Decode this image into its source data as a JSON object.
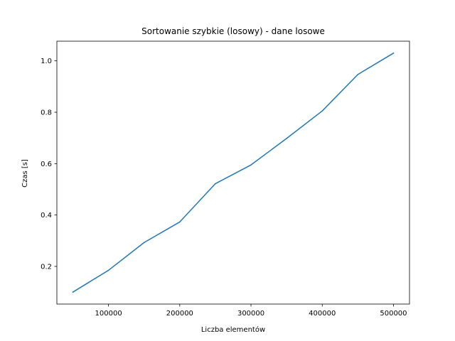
{
  "chart_data": {
    "type": "line",
    "title": "Sortowanie szybkie (losowy) - dane losowe",
    "xlabel": "Liczba elementów",
    "ylabel": "Czas [s]",
    "x": [
      50000,
      100000,
      150000,
      200000,
      250000,
      300000,
      350000,
      400000,
      450000,
      500000
    ],
    "series": [
      {
        "name": "Czas",
        "color": "#1f77b4",
        "values": [
          0.1,
          0.185,
          0.293,
          0.373,
          0.522,
          0.595,
          0.698,
          0.805,
          0.947,
          1.03
        ]
      }
    ],
    "xlim": [
      27500,
      522500
    ],
    "ylim": [
      0.0535,
      1.0765
    ],
    "xticks": [
      100000,
      200000,
      300000,
      400000,
      500000
    ],
    "xtick_labels": [
      "100000",
      "200000",
      "300000",
      "400000",
      "500000"
    ],
    "yticks": [
      0.2,
      0.4,
      0.6,
      0.8,
      1.0
    ],
    "ytick_labels": [
      "0.2",
      "0.4",
      "0.6",
      "0.8",
      "1.0"
    ],
    "grid": false,
    "legend": "none"
  }
}
